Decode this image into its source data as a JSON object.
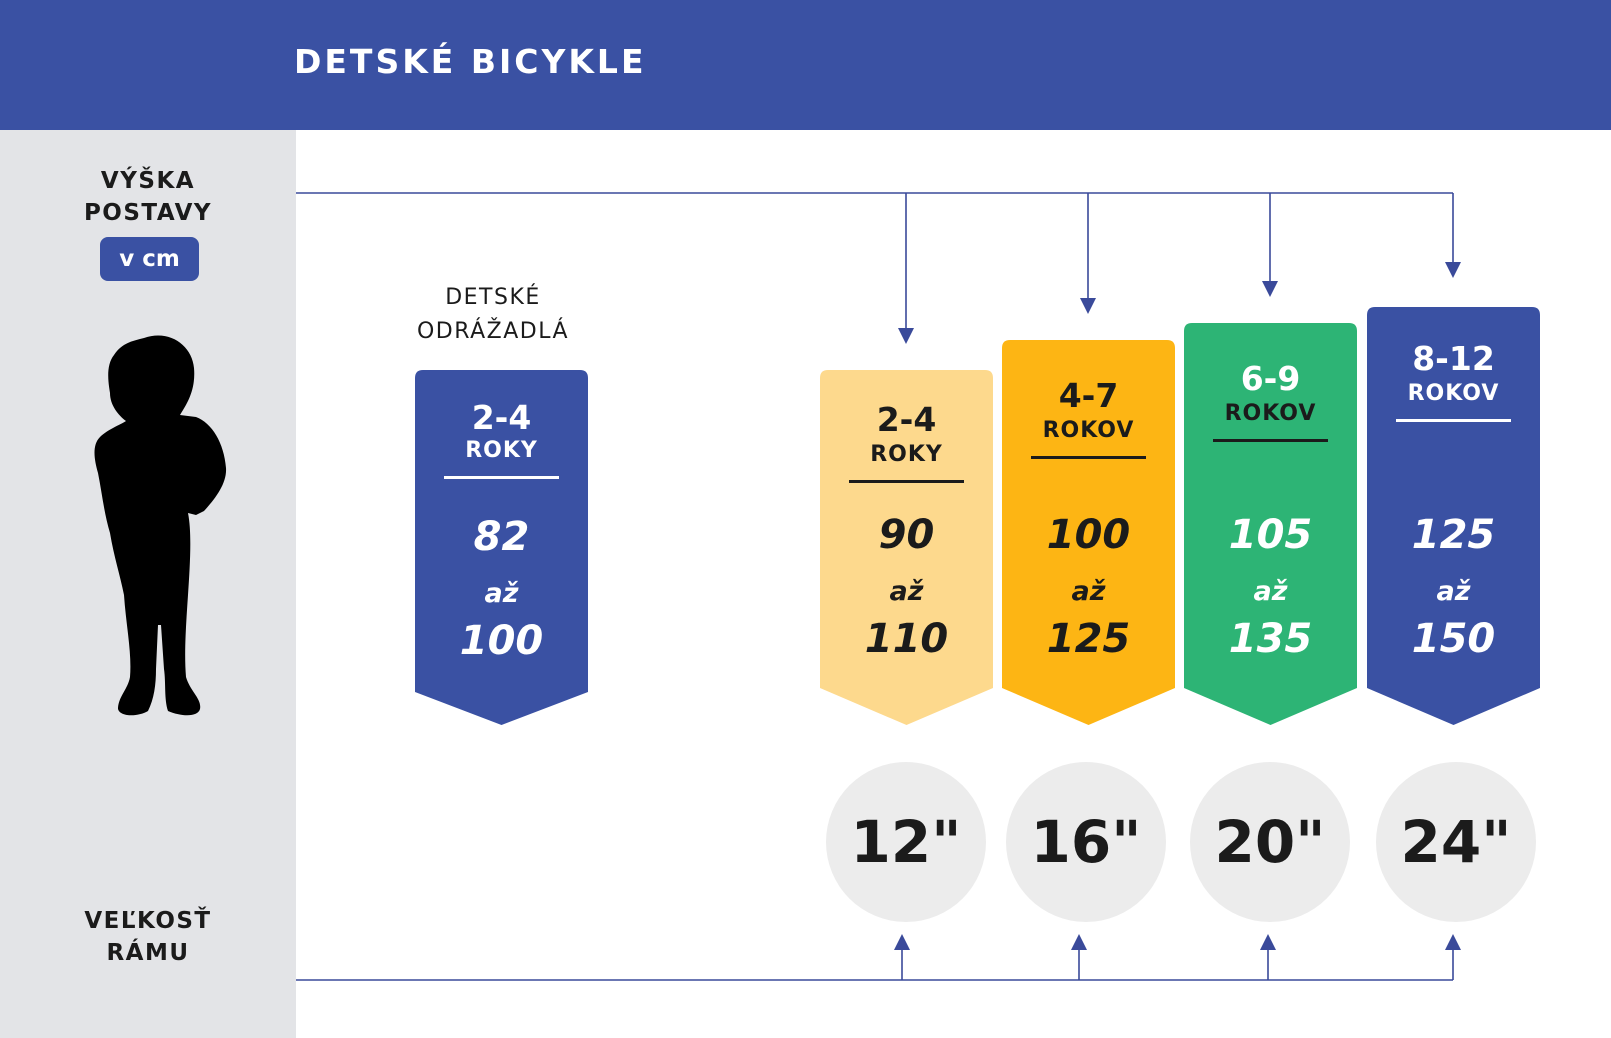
{
  "header": {
    "title": "DETSKÉ BICYKLE"
  },
  "sidebar": {
    "height_label_1": "VÝŠKA",
    "height_label_2": "POSTAVY",
    "unit": "v cm",
    "frame_label_1": "VEĽKOSŤ",
    "frame_label_2": "RÁMU"
  },
  "balance_bike": {
    "title_1": "DETSKÉ",
    "title_2": "ODRÁŽADLÁ"
  },
  "cards": [
    {
      "age": "2-4",
      "age_word": "ROKY",
      "from": "82",
      "to_word": "až",
      "to": "100",
      "color": "#3a51a3",
      "text_color": "#ffffff"
    },
    {
      "age": "2-4",
      "age_word": "ROKY",
      "from": "90",
      "to_word": "až",
      "to": "110",
      "color": "#fdd98d",
      "text_color": "#1b1b1b"
    },
    {
      "age": "4-7",
      "age_word": "ROKOV",
      "from": "100",
      "to_word": "až",
      "to": "125",
      "color": "#fdb514",
      "text_color": "#1b1b1b"
    },
    {
      "age": "6-9",
      "age_word": "ROKOV",
      "from": "105",
      "to_word": "až",
      "to": "135",
      "color": "#2db475",
      "text_color": "#ffffff"
    },
    {
      "age": "8-12",
      "age_word": "ROKOV",
      "from": "125",
      "to_word": "až",
      "to": "150",
      "color": "#3a51a3",
      "text_color": "#ffffff"
    }
  ],
  "wheels": [
    "12\"",
    "16\"",
    "20\"",
    "24\""
  ],
  "colors": {
    "brand_blue": "#3a51a3",
    "sidebar_gray": "#e3e4e7",
    "wheel_gray": "#ececec",
    "line_blue": "#3a4a9a"
  }
}
